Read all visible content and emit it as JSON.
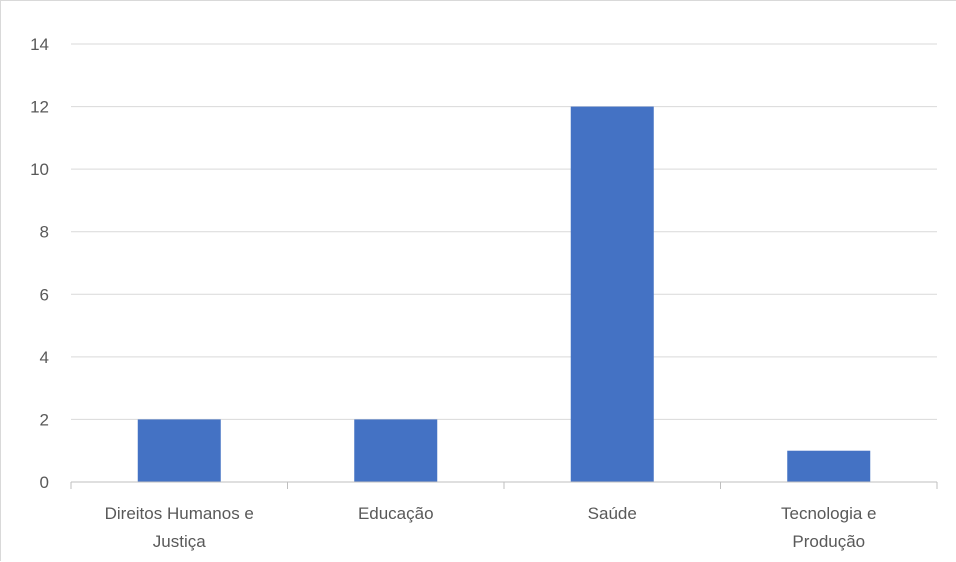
{
  "chart_data": {
    "type": "bar",
    "categories": [
      [
        "Direitos Humanos e",
        "Justiça"
      ],
      [
        "Educação"
      ],
      [
        "Saúde"
      ],
      [
        "Tecnologia e",
        "Produção"
      ]
    ],
    "values": [
      2,
      2,
      12,
      1
    ],
    "title": "",
    "xlabel": "",
    "ylabel": "",
    "ylim": [
      0,
      14
    ],
    "yticks": [
      "0",
      "2",
      "4",
      "6",
      "8",
      "10",
      "12",
      "14"
    ],
    "grid": true,
    "legend": "none",
    "bar_color": "#4472c4",
    "grid_color": "#d9d9d9",
    "axis_color": "#bfbfbf",
    "text_color": "#595959"
  }
}
